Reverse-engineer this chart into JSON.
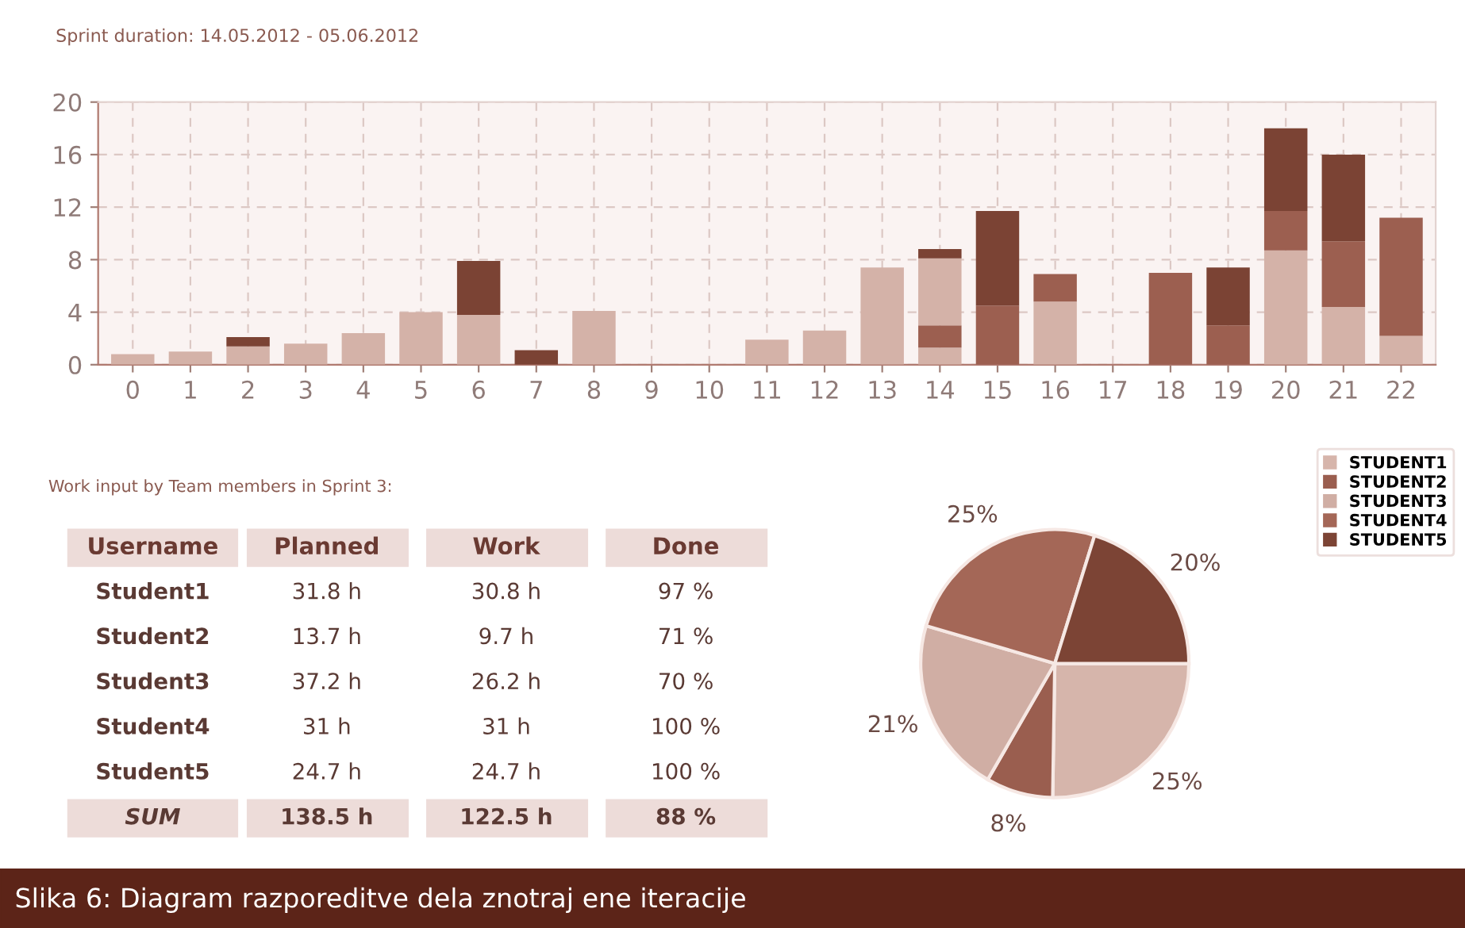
{
  "chart_data": [
    {
      "type": "bar",
      "title": "Sprint duration: 14.05.2012 - 05.06.2012",
      "stacked": true,
      "grid": true,
      "categories": [
        "0",
        "1",
        "2",
        "3",
        "4",
        "5",
        "6",
        "7",
        "8",
        "9",
        "10",
        "11",
        "12",
        "13",
        "14",
        "15",
        "16",
        "17",
        "18",
        "19",
        "20",
        "21",
        "22"
      ],
      "ylim": [
        0,
        20
      ],
      "yticks": [
        0,
        4,
        8,
        12,
        16,
        20
      ],
      "series": [
        {
          "color": "#d4b2a8",
          "values": [
            0.8,
            1.0,
            1.4,
            1.6,
            2.4,
            4.0,
            3.8,
            null,
            4.1,
            null,
            null,
            1.9,
            2.6,
            7.4,
            1.3,
            null,
            4.8,
            null,
            null,
            null,
            8.7,
            4.4,
            2.2
          ]
        },
        {
          "color": "#9c5f50",
          "values": [
            null,
            null,
            null,
            null,
            null,
            null,
            null,
            null,
            null,
            null,
            null,
            null,
            null,
            null,
            1.7,
            4.5,
            2.1,
            null,
            7.0,
            3.0,
            3.0,
            5.0,
            9.0
          ]
        },
        {
          "color": "#d4b2a8",
          "values": [
            null,
            null,
            null,
            null,
            null,
            null,
            null,
            null,
            null,
            null,
            null,
            null,
            null,
            null,
            5.1,
            null,
            null,
            null,
            null,
            null,
            null,
            null,
            null
          ]
        },
        {
          "color": "#7b4334",
          "values": [
            null,
            null,
            0.7,
            null,
            null,
            null,
            4.1,
            1.1,
            null,
            null,
            null,
            null,
            null,
            null,
            0.7,
            7.2,
            null,
            null,
            null,
            4.4,
            6.3,
            6.6,
            null
          ]
        }
      ],
      "annotations": [
        "Slika 6: Diagram razporeditve dela znotraj ene iteracije"
      ]
    },
    {
      "type": "other",
      "title": "Work input by Team members in Sprint 3:",
      "categories": [
        "Username",
        "Planned",
        "Work",
        "Done"
      ],
      "cell_labels": [
        [
          "Student1",
          "31.8 h",
          "30.8 h",
          "97 %"
        ],
        [
          "Student2",
          "13.7 h",
          "9.7 h",
          "71 %"
        ],
        [
          "Student3",
          "37.2 h",
          "26.2 h",
          "70 %"
        ],
        [
          "Student4",
          "31 h",
          "31 h",
          "100 %"
        ],
        [
          "Student5",
          "24.7 h",
          "24.7 h",
          "100 %"
        ],
        [
          "SUM",
          "138.5 h",
          "122.5 h",
          "88 %"
        ]
      ]
    },
    {
      "type": "pie",
      "categories": [
        "STUDENT1",
        "STUDENT2",
        "STUDENT3",
        "STUDENT4",
        "STUDENT5"
      ],
      "values": [
        25,
        8,
        21,
        25,
        20
      ],
      "value_labels": [
        "25%",
        "8%",
        "21%",
        "25%",
        "20%"
      ],
      "colors": [
        "#d6b5ab",
        "#9a5e4f",
        "#d0aea4",
        "#a46757",
        "#7c4435"
      ],
      "legend": "top right"
    }
  ]
}
